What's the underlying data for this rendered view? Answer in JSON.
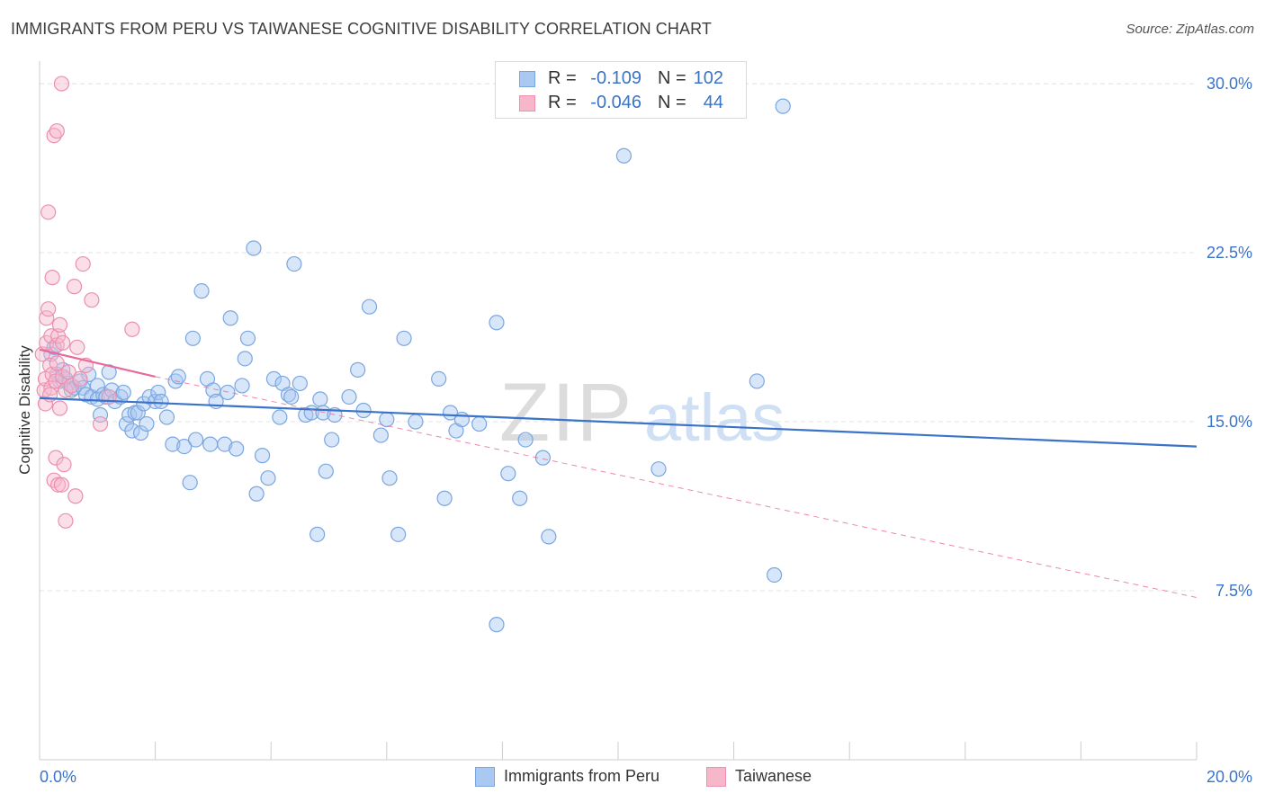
{
  "header": {
    "title": "IMMIGRANTS FROM PERU VS TAIWANESE COGNITIVE DISABILITY CORRELATION CHART",
    "source": "Source: ZipAtlas.com"
  },
  "legend": {
    "rows": [
      {
        "r_label": "R =",
        "r_value": "-0.109",
        "n_label": "N =",
        "n_value": "102"
      },
      {
        "r_label": "R =",
        "r_value": "-0.046",
        "n_label": "N =",
        "n_value": "44"
      }
    ]
  },
  "watermark": {
    "zip": "ZIP",
    "atlas": "atlas"
  },
  "colors": {
    "peru_fill": "#a9c8f2",
    "peru_stroke": "#7aa6e0",
    "peru_line": "#3a73c8",
    "taiwan_fill": "#f6b7cb",
    "taiwan_stroke": "#ec8fb0",
    "taiwan_line": "#e8699a",
    "axis_text": "#3a73c8",
    "grid": "#e3e3e3"
  },
  "chart_data": {
    "type": "scatter",
    "ylabel": "Cognitive Disability",
    "xlim": [
      0,
      20
    ],
    "ylim": [
      0,
      31
    ],
    "x_ticks": [
      {
        "value": 0,
        "label": "0.0%"
      },
      {
        "value": 20,
        "label": "20.0%"
      }
    ],
    "y_ticks": [
      {
        "value": 7.5,
        "label": "7.5%"
      },
      {
        "value": 15.0,
        "label": "15.0%"
      },
      {
        "value": 22.5,
        "label": "22.5%"
      },
      {
        "value": 30.0,
        "label": "30.0%"
      }
    ],
    "grid": true,
    "legend_position": "bottom-center",
    "series": [
      {
        "name": "Immigrants from Peru",
        "trend": {
          "x": [
            0.0,
            20.0
          ],
          "y": [
            16.05,
            13.9
          ],
          "style": "solid"
        },
        "points": [
          [
            0.2,
            18.0
          ],
          [
            0.25,
            18.3
          ],
          [
            0.3,
            17.1
          ],
          [
            0.35,
            16.8
          ],
          [
            0.4,
            17.3
          ],
          [
            0.45,
            16.9
          ],
          [
            0.5,
            16.7
          ],
          [
            0.55,
            16.4
          ],
          [
            0.6,
            16.5
          ],
          [
            0.7,
            16.8
          ],
          [
            0.75,
            16.5
          ],
          [
            0.8,
            16.2
          ],
          [
            0.85,
            17.1
          ],
          [
            0.9,
            16.1
          ],
          [
            1.0,
            16.0
          ],
          [
            1.0,
            16.6
          ],
          [
            1.05,
            15.3
          ],
          [
            1.1,
            16.2
          ],
          [
            1.15,
            16.1
          ],
          [
            1.2,
            17.2
          ],
          [
            1.25,
            16.4
          ],
          [
            1.3,
            15.9
          ],
          [
            1.4,
            16.1
          ],
          [
            1.45,
            16.3
          ],
          [
            1.5,
            14.9
          ],
          [
            1.55,
            15.3
          ],
          [
            1.6,
            14.6
          ],
          [
            1.65,
            15.4
          ],
          [
            1.7,
            15.4
          ],
          [
            1.75,
            14.5
          ],
          [
            1.8,
            15.8
          ],
          [
            1.85,
            14.9
          ],
          [
            1.9,
            16.1
          ],
          [
            2.0,
            15.9
          ],
          [
            2.05,
            16.3
          ],
          [
            2.1,
            15.9
          ],
          [
            2.2,
            15.2
          ],
          [
            2.3,
            14.0
          ],
          [
            2.35,
            16.8
          ],
          [
            2.4,
            17.0
          ],
          [
            2.5,
            13.9
          ],
          [
            2.6,
            12.3
          ],
          [
            2.65,
            18.7
          ],
          [
            2.7,
            14.2
          ],
          [
            2.8,
            20.8
          ],
          [
            2.9,
            16.9
          ],
          [
            2.95,
            14.0
          ],
          [
            3.0,
            16.4
          ],
          [
            3.05,
            15.9
          ],
          [
            3.2,
            14.0
          ],
          [
            3.25,
            16.3
          ],
          [
            3.3,
            19.6
          ],
          [
            3.4,
            13.8
          ],
          [
            3.5,
            16.6
          ],
          [
            3.55,
            17.8
          ],
          [
            3.6,
            18.7
          ],
          [
            3.7,
            22.7
          ],
          [
            3.75,
            11.8
          ],
          [
            3.85,
            13.5
          ],
          [
            3.95,
            12.5
          ],
          [
            4.05,
            16.9
          ],
          [
            4.15,
            15.2
          ],
          [
            4.2,
            16.7
          ],
          [
            4.3,
            16.2
          ],
          [
            4.35,
            16.1
          ],
          [
            4.4,
            22.0
          ],
          [
            4.5,
            16.7
          ],
          [
            4.6,
            15.3
          ],
          [
            4.7,
            15.4
          ],
          [
            4.8,
            10.0
          ],
          [
            4.85,
            16.0
          ],
          [
            4.9,
            15.4
          ],
          [
            4.95,
            12.8
          ],
          [
            5.05,
            14.2
          ],
          [
            5.1,
            15.3
          ],
          [
            5.35,
            16.1
          ],
          [
            5.5,
            17.3
          ],
          [
            5.6,
            15.5
          ],
          [
            5.7,
            20.1
          ],
          [
            5.9,
            14.4
          ],
          [
            6.0,
            15.1
          ],
          [
            6.05,
            12.5
          ],
          [
            6.2,
            10.0
          ],
          [
            6.3,
            18.7
          ],
          [
            6.5,
            15.0
          ],
          [
            6.9,
            16.9
          ],
          [
            7.0,
            11.6
          ],
          [
            7.1,
            15.4
          ],
          [
            7.2,
            14.6
          ],
          [
            7.3,
            15.1
          ],
          [
            7.6,
            14.9
          ],
          [
            7.9,
            19.4
          ],
          [
            7.9,
            6.0
          ],
          [
            8.1,
            12.7
          ],
          [
            8.3,
            11.6
          ],
          [
            8.4,
            14.2
          ],
          [
            8.7,
            13.4
          ],
          [
            8.8,
            9.9
          ],
          [
            10.1,
            26.8
          ],
          [
            10.7,
            12.9
          ],
          [
            12.4,
            16.8
          ],
          [
            12.7,
            8.2
          ],
          [
            12.85,
            29.0
          ]
        ]
      },
      {
        "name": "Taiwanese",
        "trend": {
          "x": [
            0.0,
            2.0
          ],
          "y": [
            18.2,
            17.0
          ],
          "style": "solid"
        },
        "trend_ext": {
          "x": [
            2.0,
            20.0
          ],
          "y": [
            17.0,
            7.2
          ],
          "style": "dashed"
        },
        "points": [
          [
            0.05,
            18.0
          ],
          [
            0.08,
            16.4
          ],
          [
            0.1,
            16.9
          ],
          [
            0.12,
            18.5
          ],
          [
            0.12,
            19.6
          ],
          [
            0.15,
            20.0
          ],
          [
            0.15,
            24.3
          ],
          [
            0.18,
            17.5
          ],
          [
            0.2,
            16.5
          ],
          [
            0.2,
            18.8
          ],
          [
            0.22,
            17.1
          ],
          [
            0.22,
            21.4
          ],
          [
            0.25,
            12.4
          ],
          [
            0.25,
            27.7
          ],
          [
            0.28,
            13.4
          ],
          [
            0.28,
            16.8
          ],
          [
            0.3,
            17.6
          ],
          [
            0.3,
            18.4
          ],
          [
            0.3,
            27.9
          ],
          [
            0.32,
            12.2
          ],
          [
            0.32,
            18.8
          ],
          [
            0.35,
            15.6
          ],
          [
            0.35,
            19.3
          ],
          [
            0.38,
            12.2
          ],
          [
            0.38,
            30.0
          ],
          [
            0.4,
            17.0
          ],
          [
            0.4,
            18.5
          ],
          [
            0.42,
            13.1
          ],
          [
            0.45,
            10.6
          ],
          [
            0.45,
            16.4
          ],
          [
            0.5,
            17.2
          ],
          [
            0.55,
            16.6
          ],
          [
            0.6,
            21.0
          ],
          [
            0.62,
            11.7
          ],
          [
            0.65,
            18.3
          ],
          [
            0.7,
            16.9
          ],
          [
            0.75,
            22.0
          ],
          [
            0.8,
            17.5
          ],
          [
            0.9,
            20.4
          ],
          [
            1.05,
            14.9
          ],
          [
            1.2,
            16.1
          ],
          [
            1.6,
            19.1
          ],
          [
            0.1,
            15.8
          ],
          [
            0.18,
            16.2
          ]
        ]
      }
    ]
  }
}
